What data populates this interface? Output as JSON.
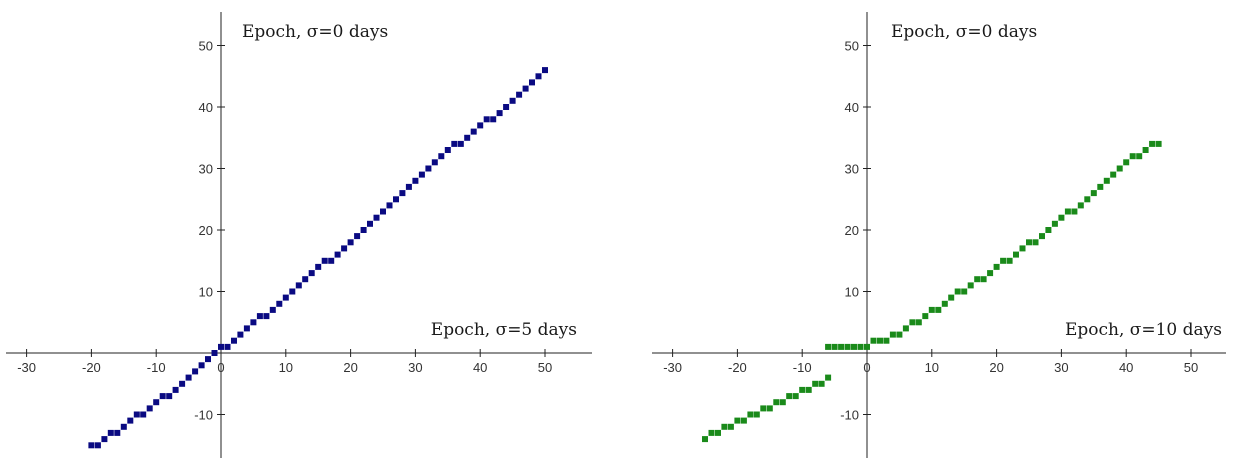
{
  "chart_data": [
    {
      "type": "scatter",
      "xlabel": "Epoch, σ=5 days",
      "ylabel": "Epoch, σ=0 days",
      "xlim": [
        -33,
        55
      ],
      "ylim": [
        -17,
        54
      ],
      "xticks": [
        -30,
        -20,
        -10,
        0,
        10,
        20,
        30,
        40,
        50
      ],
      "yticks": [
        -10,
        10,
        20,
        30,
        40,
        50
      ],
      "color": "#0a0a82",
      "series": [
        {
          "x": [
            -20,
            -19,
            -18,
            -17,
            -16,
            -15,
            -14,
            -13,
            -12,
            -11,
            -10,
            -9,
            -8,
            -7,
            -6,
            -5,
            -4,
            -3,
            -2,
            -1,
            0,
            1,
            2,
            3,
            4,
            5,
            6,
            7,
            8,
            9,
            10,
            11,
            12,
            13,
            14,
            15,
            16,
            17,
            18,
            19,
            20,
            21,
            22,
            23,
            24,
            25,
            26,
            27,
            28,
            29,
            30,
            31,
            32,
            33,
            34,
            35,
            36,
            37,
            38,
            39,
            40,
            41,
            42,
            43,
            44,
            45,
            46,
            47,
            48,
            49,
            50
          ],
          "y": [
            -15,
            -15,
            -14,
            -13,
            -13,
            -12,
            -11,
            -10,
            -10,
            -9,
            -8,
            -7,
            -7,
            -6,
            -5,
            -4,
            -3,
            -2,
            -1,
            0,
            1,
            1,
            2,
            3,
            4,
            5,
            6,
            6,
            7,
            8,
            9,
            10,
            11,
            12,
            13,
            14,
            15,
            15,
            16,
            17,
            18,
            19,
            20,
            21,
            22,
            23,
            24,
            25,
            26,
            27,
            28,
            29,
            30,
            31,
            32,
            33,
            34,
            34,
            35,
            36,
            37,
            38,
            38,
            39,
            40,
            41,
            42,
            43,
            44,
            45,
            46
          ]
        }
      ]
    },
    {
      "type": "scatter",
      "xlabel": "Epoch, σ=10 days",
      "ylabel": "Epoch, σ=0 days",
      "xlim": [
        -33,
        55
      ],
      "ylim": [
        -17,
        54
      ],
      "xticks": [
        -30,
        -20,
        -10,
        0,
        10,
        20,
        30,
        40,
        50
      ],
      "yticks": [
        -10,
        10,
        20,
        30,
        40,
        50
      ],
      "color": "#1a8a1a",
      "series": [
        {
          "x": [
            -25,
            -24,
            -23,
            -22,
            -21,
            -20,
            -19,
            -18,
            -17,
            -16,
            -15,
            -14,
            -13,
            -12,
            -11,
            -10,
            -9,
            -8,
            -7,
            -6,
            -6,
            -5,
            -4,
            -3,
            -2,
            -1,
            0,
            1,
            2,
            3,
            4,
            5,
            6,
            7,
            8,
            9,
            10,
            11,
            12,
            13,
            14,
            15,
            16,
            17,
            18,
            19,
            20,
            21,
            22,
            23,
            24,
            25,
            26,
            27,
            28,
            29,
            30,
            31,
            32,
            33,
            34,
            35,
            36,
            37,
            38,
            39,
            40,
            41,
            42,
            43,
            44,
            45
          ],
          "y": [
            -14,
            -13,
            -13,
            -12,
            -12,
            -11,
            -11,
            -10,
            -10,
            -9,
            -9,
            -8,
            -8,
            -7,
            -7,
            -6,
            -6,
            -5,
            -5,
            -4,
            1,
            1,
            1,
            1,
            1,
            1,
            1,
            2,
            2,
            2,
            3,
            3,
            4,
            5,
            5,
            6,
            7,
            7,
            8,
            9,
            10,
            10,
            11,
            12,
            12,
            13,
            14,
            15,
            15,
            16,
            17,
            18,
            18,
            19,
            20,
            21,
            22,
            23,
            23,
            24,
            25,
            26,
            27,
            28,
            29,
            30,
            31,
            32,
            32,
            33,
            34,
            34
          ]
        }
      ]
    }
  ]
}
